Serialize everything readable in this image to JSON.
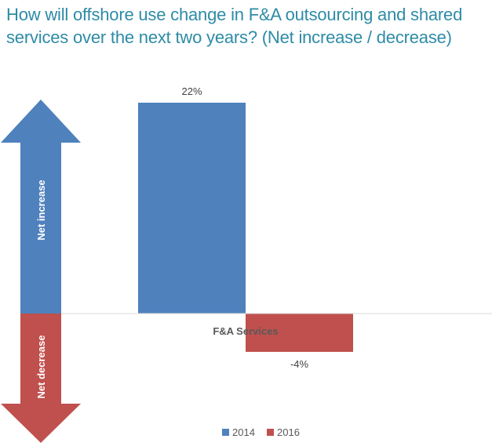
{
  "title": "How will offshore use change in F&A outsourcing and shared services over the next two years? (Net increase / decrease)",
  "arrows": {
    "up_label": "Net increase",
    "down_label": "Net decrease",
    "up_color": "#4f81bd",
    "down_color": "#c0504d"
  },
  "chart_data": {
    "type": "bar",
    "categories": [
      "F&A Services"
    ],
    "series": [
      {
        "name": "2014",
        "values": [
          22
        ],
        "color": "#4f81bd",
        "label": "22%"
      },
      {
        "name": "2016",
        "values": [
          -4
        ],
        "color": "#c0504d",
        "label": "-4%"
      }
    ],
    "ylim": [
      -13,
      22
    ],
    "grid": false,
    "legend": "bottom",
    "xlabel": "",
    "ylabel": ""
  }
}
